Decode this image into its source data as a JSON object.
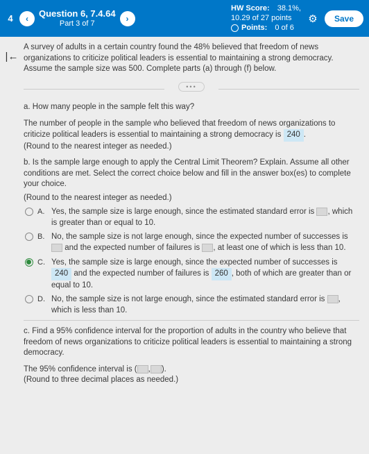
{
  "header": {
    "num": "4",
    "question_title": "Question 6, 7.4.64",
    "question_sub": "Part 3 of 7",
    "hw_score_label": "HW Score:",
    "hw_score_value": "38.1%,",
    "hw_score_line2": "10.29 of 27 points",
    "points_label": "Points:",
    "points_value": "0 of 6",
    "save": "Save"
  },
  "intro": "A survey of adults in a certain country found the 48% believed that freedom of news organizations to criticize political leaders is essential to maintaining a strong democracy. Assume the sample size was 500. Complete parts (a) through (f) below.",
  "a": {
    "q": "a. How many people in the sample felt this way?",
    "text1": "The number of people in the sample who believed that freedom of news organizations to criticize political leaders is essential to maintaining a strong democracy is",
    "ans": "240",
    "text2": ".",
    "round": "(Round to the nearest integer as needed.)"
  },
  "b": {
    "q": "b. Is the sample large enough to apply the Central Limit Theorem? Explain. Assume all other conditions are met. Select the correct choice below and fill in the answer box(es) to complete your choice.",
    "round": "(Round to the nearest integer as needed.)",
    "A": {
      "letter": "A.",
      "t1": "Yes, the sample size is large enough, since the estimated standard error is",
      "t2": ", which is greater than or equal to 10."
    },
    "B": {
      "letter": "B.",
      "t1": "No, the sample size is not large enough, since the expected number of successes is",
      "t2": "and the expected number of failures is",
      "t3": ", at least one of which is less than 10."
    },
    "C": {
      "letter": "C.",
      "t1": "Yes, the sample size is large enough, since the expected number of successes is",
      "v1": "240",
      "t2": "and the expected number of failures is",
      "v2": "260",
      "t3": ", both of which are greater than or equal to 10."
    },
    "D": {
      "letter": "D.",
      "t1": "No, the sample size is not large enough, since the estimated standard error is",
      "t2": ", which is less than 10."
    }
  },
  "c": {
    "q": "c. Find a 95% confidence interval for the proportion of adults in the country who believe that freedom of news organizations to criticize political leaders is essential to maintaining a strong democracy.",
    "t1": "The 95% confidence interval is (",
    "t2": ",",
    "t3": ").",
    "round": "(Round to three decimal places as needed.)"
  }
}
